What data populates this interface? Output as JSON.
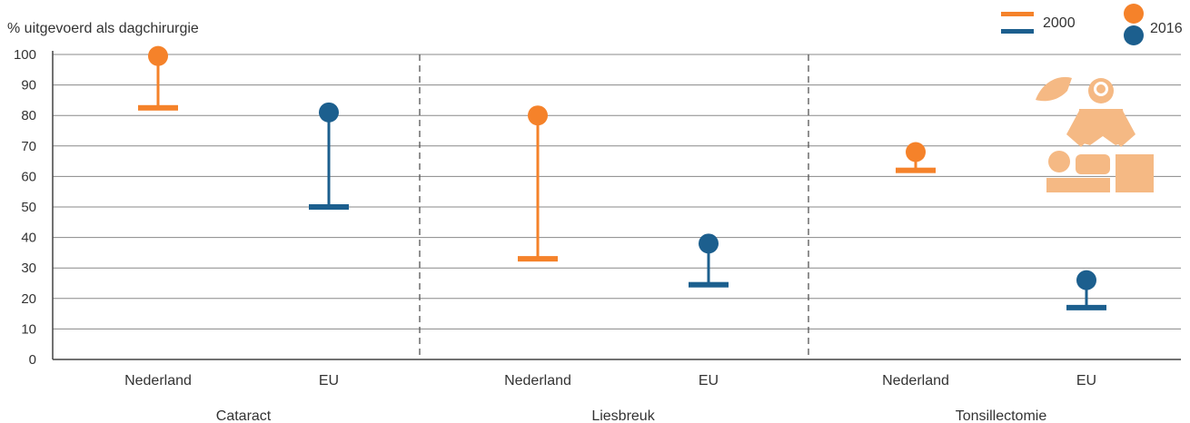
{
  "chart_data": {
    "type": "dumbbell",
    "ylabel": "% uitgevoerd als dagchirurgie",
    "ylim": [
      0,
      100
    ],
    "yticks": [
      0,
      10,
      20,
      30,
      40,
      50,
      60,
      70,
      80,
      90,
      100
    ],
    "legend": {
      "placement": "top-right",
      "entries": [
        {
          "label": "2000",
          "marker": "bar"
        },
        {
          "label": "2016",
          "marker": "dot"
        }
      ]
    },
    "series_colors": {
      "Nederland": "#f5822a",
      "EU": "#1c5f8e"
    },
    "groups": [
      {
        "name": "Cataract",
        "items": [
          {
            "label": "Nederland",
            "y2000": 82.5,
            "y2016": 99.5
          },
          {
            "label": "EU",
            "y2000": 50,
            "y2016": 81
          }
        ]
      },
      {
        "name": "Liesbreuk",
        "items": [
          {
            "label": "Nederland",
            "y2000": 33,
            "y2016": 80
          },
          {
            "label": "EU",
            "y2000": 24.5,
            "y2016": 38
          }
        ]
      },
      {
        "name": "Tonsillectomie",
        "items": [
          {
            "label": "Nederland",
            "y2000": 62,
            "y2016": 68
          },
          {
            "label": "EU",
            "y2000": 17,
            "y2016": 26
          }
        ]
      }
    ]
  },
  "illustration": {
    "icon": "surgeon-operating-icon",
    "color": "#f5b984"
  }
}
